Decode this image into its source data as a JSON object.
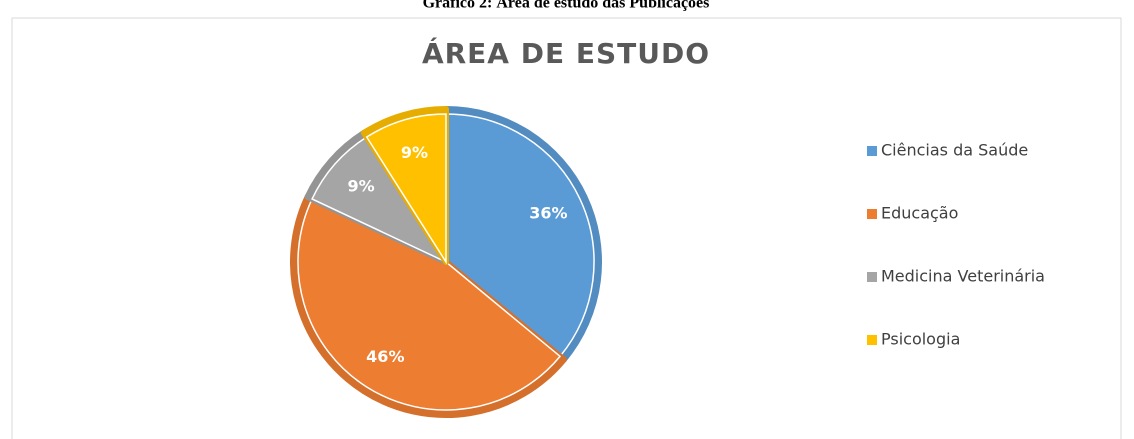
{
  "caption": "Gráfico 2: Área de estudo das Publicações",
  "chart_data": {
    "type": "pie",
    "title": "ÁREA DE ESTUDO",
    "categories": [
      "Ciências da Saúde",
      "Educação",
      "Medicina Veterinária",
      "Psicologia"
    ],
    "values": [
      36,
      46,
      9,
      9
    ],
    "value_labels": [
      "36%",
      "46%",
      "9%",
      "9%"
    ],
    "colors": [
      "#5b9bd5",
      "#ed7d31",
      "#a5a5a5",
      "#ffc000"
    ],
    "legend": "right"
  }
}
